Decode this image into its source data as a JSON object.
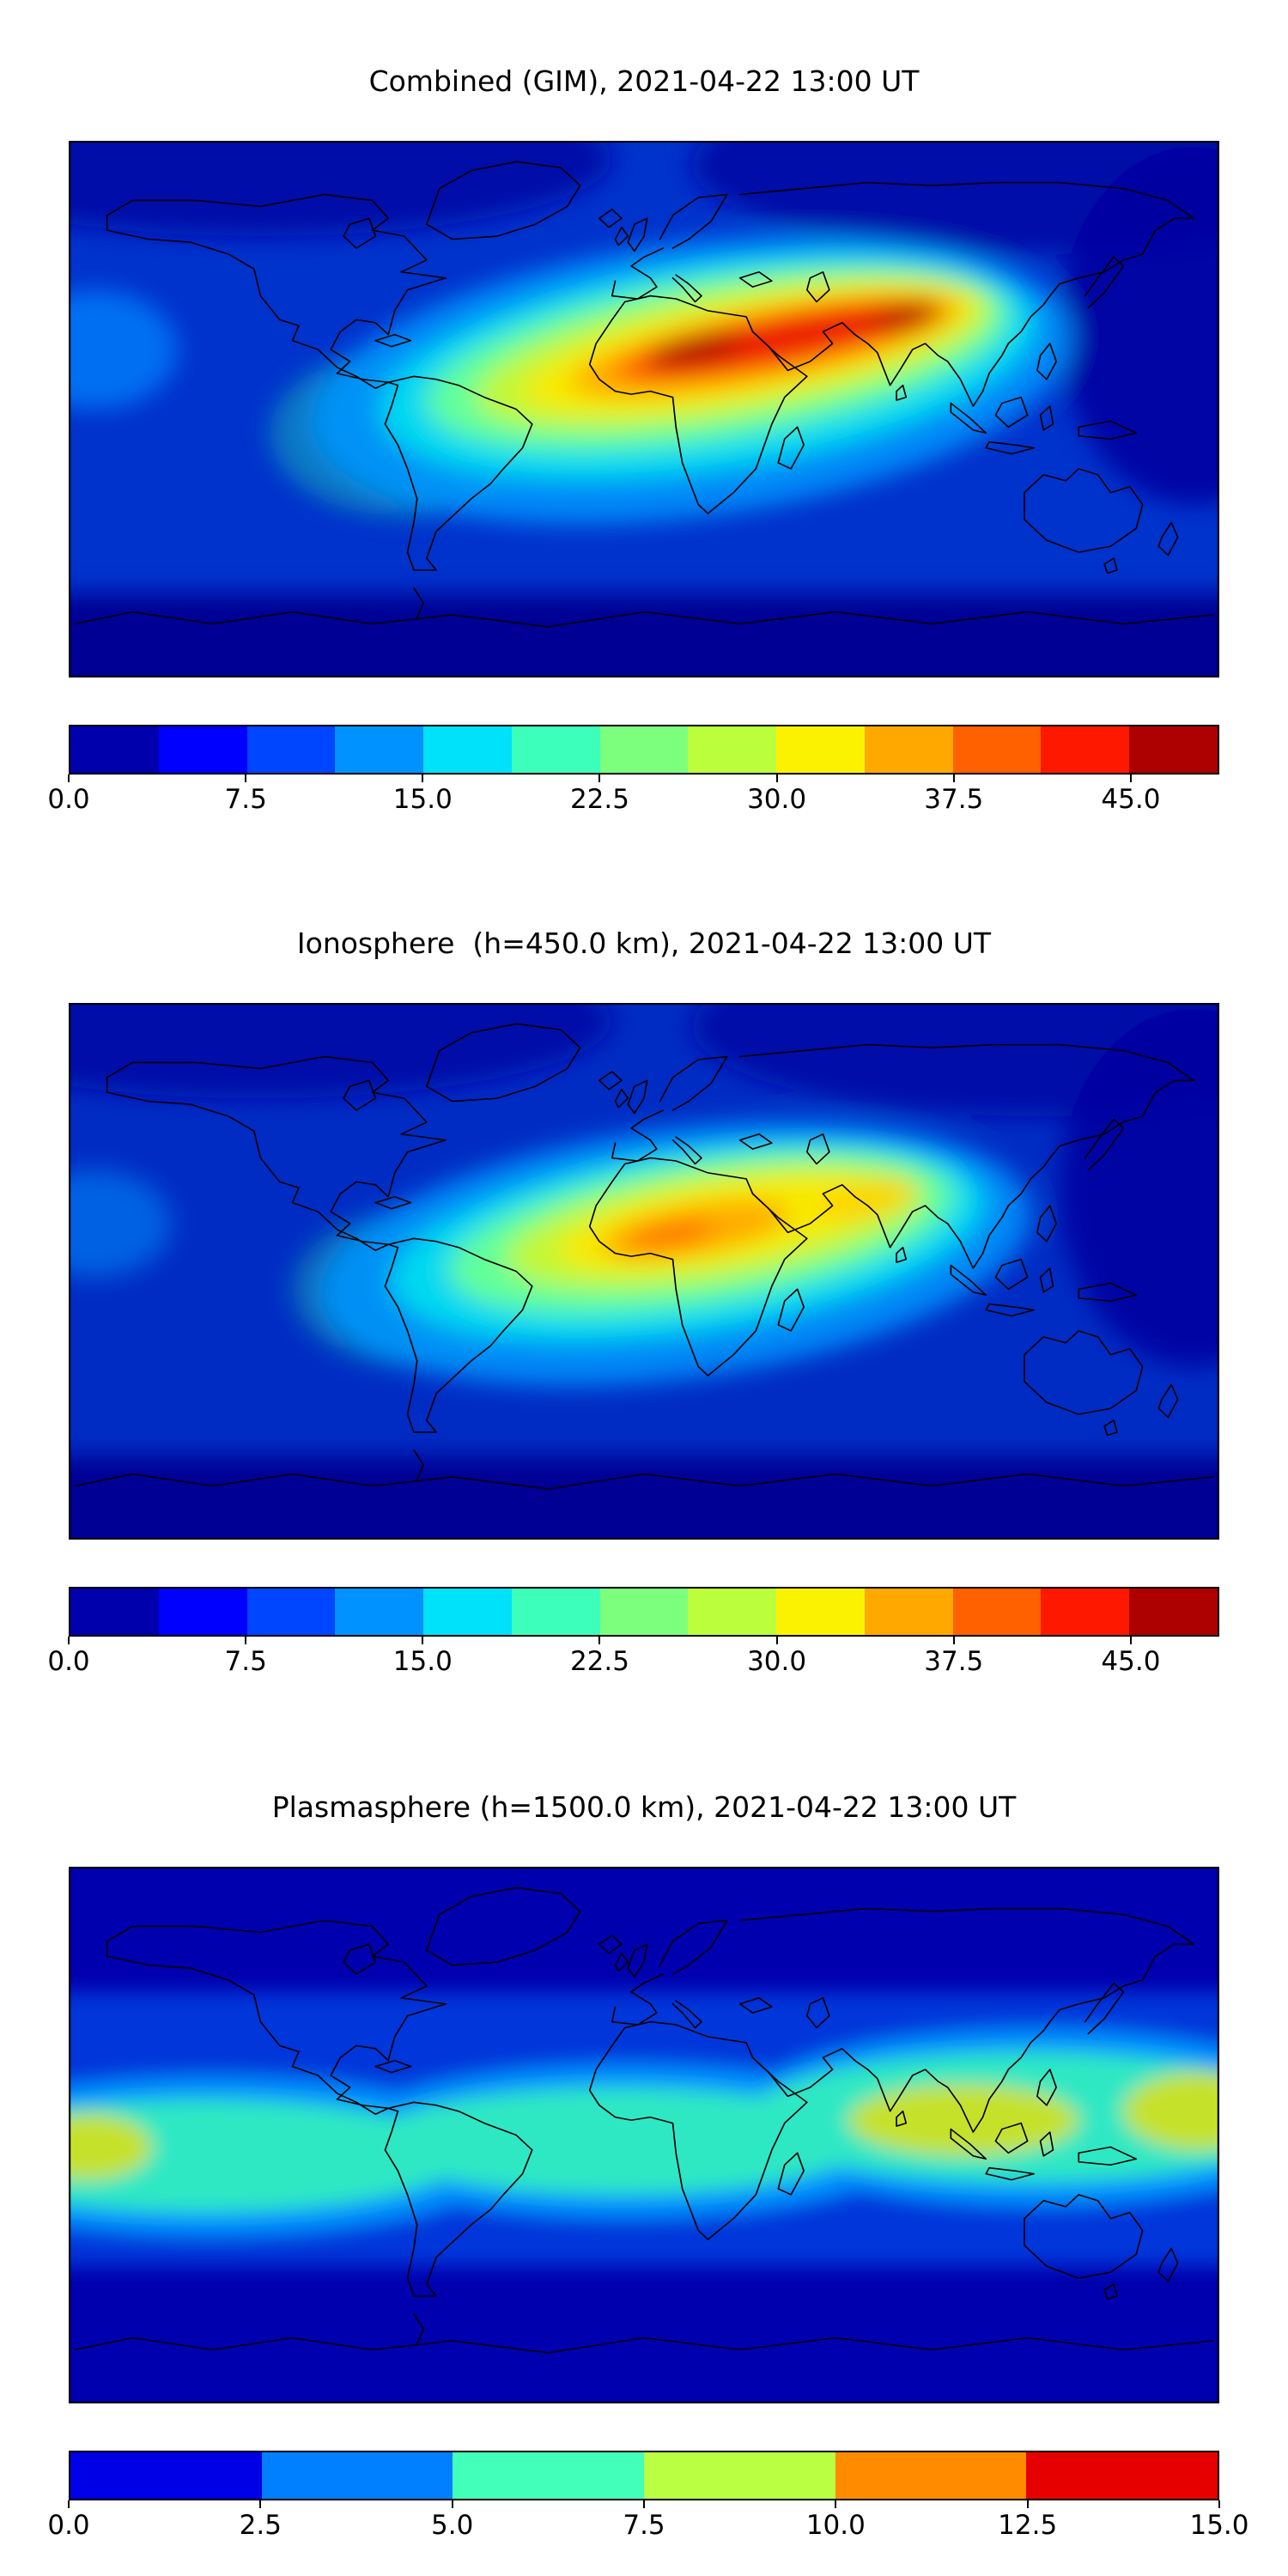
{
  "figure": {
    "background": "#ffffff",
    "text_color": "#000000"
  },
  "panels": [
    {
      "title": "Combined (GIM), 2021-04-22 13:00 UT",
      "colorbar": {
        "vmin": 0.0,
        "vmax": 48.75,
        "outline_color": "#000000",
        "segment_colors": [
          "#0000ad",
          "#0000ff",
          "#0045ff",
          "#0093ff",
          "#00e1fa",
          "#3cffbb",
          "#7cff7c",
          "#bbff3c",
          "#faf200",
          "#ffa900",
          "#ff6000",
          "#ff1800",
          "#ad0000"
        ],
        "ticks": [
          {
            "label": "0.0",
            "pos_pct": 0
          },
          {
            "label": "7.5",
            "pos_pct": 15.385
          },
          {
            "label": "15.0",
            "pos_pct": 30.769
          },
          {
            "label": "22.5",
            "pos_pct": 46.154
          },
          {
            "label": "30.0",
            "pos_pct": 61.538
          },
          {
            "label": "37.5",
            "pos_pct": 76.923
          },
          {
            "label": "45.0",
            "pos_pct": 92.308
          }
        ]
      }
    },
    {
      "title": "Ionosphere  (h=450.0 km), 2021-04-22 13:00 UT",
      "colorbar": {
        "vmin": 0.0,
        "vmax": 48.75,
        "outline_color": "#000000",
        "segment_colors": [
          "#0000ad",
          "#0000ff",
          "#0045ff",
          "#0093ff",
          "#00e1fa",
          "#3cffbb",
          "#7cff7c",
          "#bbff3c",
          "#faf200",
          "#ffa900",
          "#ff6000",
          "#ff1800",
          "#ad0000"
        ],
        "ticks": [
          {
            "label": "0.0",
            "pos_pct": 0
          },
          {
            "label": "7.5",
            "pos_pct": 15.385
          },
          {
            "label": "15.0",
            "pos_pct": 30.769
          },
          {
            "label": "22.5",
            "pos_pct": 46.154
          },
          {
            "label": "30.0",
            "pos_pct": 61.538
          },
          {
            "label": "37.5",
            "pos_pct": 76.923
          },
          {
            "label": "45.0",
            "pos_pct": 92.308
          }
        ]
      }
    },
    {
      "title": "Plasmasphere (h=1500.0 km), 2021-04-22 13:00 UT",
      "colorbar": {
        "vmin": 0.0,
        "vmax": 15.0,
        "outline_color": "#000000",
        "segment_colors": [
          "#0000e6",
          "#0080ff",
          "#42ffba",
          "#baff42",
          "#ff8c00",
          "#e60000"
        ],
        "ticks": [
          {
            "label": "0.0",
            "pos_pct": 0
          },
          {
            "label": "2.5",
            "pos_pct": 16.667
          },
          {
            "label": "5.0",
            "pos_pct": 33.333
          },
          {
            "label": "7.5",
            "pos_pct": 50
          },
          {
            "label": "10.0",
            "pos_pct": 66.667
          },
          {
            "label": "12.5",
            "pos_pct": 83.333
          },
          {
            "label": "15.0",
            "pos_pct": 100
          }
        ]
      }
    }
  ],
  "chart_data": [
    {
      "type": "heatmap",
      "subtype": "filled_contour_world_map",
      "title": "Combined (GIM), 2021-04-22 13:00 UT",
      "datetime_ut": "2021-04-22 13:00",
      "projection": "equirectangular",
      "lon_range": [
        -180,
        180
      ],
      "lat_range": [
        -90,
        90
      ],
      "colormap": "jet",
      "value_range": [
        0,
        48.75
      ],
      "contour_step": 3.75,
      "colorbar_ticks": [
        0.0,
        7.5,
        15.0,
        22.5,
        30.0,
        37.5,
        45.0
      ],
      "grid_lon": [
        -180,
        -135,
        -90,
        -45,
        0,
        45,
        90,
        135,
        180
      ],
      "grid_lat": [
        60,
        30,
        0,
        -30,
        -60
      ],
      "estimated_values": [
        [
          4,
          4,
          5,
          6,
          7,
          8,
          7,
          5,
          4
        ],
        [
          5,
          6,
          9,
          16,
          32,
          40,
          26,
          10,
          5
        ],
        [
          6,
          8,
          14,
          20,
          34,
          30,
          18,
          10,
          7
        ],
        [
          4,
          6,
          10,
          12,
          14,
          12,
          8,
          6,
          4
        ],
        [
          3,
          3,
          4,
          5,
          6,
          6,
          5,
          4,
          3
        ]
      ],
      "maxima": [
        {
          "lon": 15,
          "lat": 14,
          "value": 47
        },
        {
          "lon": 78,
          "lat": 22,
          "value": 45
        }
      ],
      "notes": "Elongated enhancement band from the tropical Atlantic across Africa, Arabia and India (dark red cores over central Africa and India); dark-blue minima over the Pacific, high latitudes and Antarctica."
    },
    {
      "type": "heatmap",
      "subtype": "filled_contour_world_map",
      "title": "Ionosphere  (h=450.0 km), 2021-04-22 13:00 UT",
      "datetime_ut": "2021-04-22 13:00",
      "projection": "equirectangular",
      "lon_range": [
        -180,
        180
      ],
      "lat_range": [
        -90,
        90
      ],
      "colormap": "jet",
      "value_range": [
        0,
        48.75
      ],
      "contour_step": 3.75,
      "colorbar_ticks": [
        0.0,
        7.5,
        15.0,
        22.5,
        30.0,
        37.5,
        45.0
      ],
      "grid_lon": [
        -180,
        -135,
        -90,
        -45,
        0,
        45,
        90,
        135,
        180
      ],
      "grid_lat": [
        60,
        30,
        0,
        -30,
        -60
      ],
      "estimated_values": [
        [
          3,
          3,
          4,
          5,
          6,
          7,
          6,
          4,
          3
        ],
        [
          4,
          5,
          7,
          12,
          25,
          30,
          18,
          8,
          4
        ],
        [
          5,
          7,
          11,
          16,
          26,
          22,
          13,
          8,
          5
        ],
        [
          3,
          5,
          8,
          10,
          11,
          10,
          7,
          5,
          3
        ],
        [
          2,
          2,
          3,
          4,
          5,
          5,
          4,
          3,
          2
        ]
      ],
      "maxima": [
        {
          "lon": 8,
          "lat": 13,
          "value": 33
        },
        {
          "lon": 60,
          "lat": 18,
          "value": 28
        }
      ],
      "notes": "Same pattern as the combined map but weaker; orange maximum over West/Central Africa with a yellow tongue extending toward India."
    },
    {
      "type": "heatmap",
      "subtype": "filled_contour_world_map",
      "title": "Plasmasphere (h=1500.0 km), 2021-04-22 13:00 UT",
      "datetime_ut": "2021-04-22 13:00",
      "projection": "equirectangular",
      "lon_range": [
        -180,
        180
      ],
      "lat_range": [
        -90,
        90
      ],
      "colormap": "jet",
      "value_range": [
        0,
        15
      ],
      "contour_step": 2.5,
      "colorbar_ticks": [
        0.0,
        2.5,
        5.0,
        7.5,
        10.0,
        12.5,
        15.0
      ],
      "grid_lon": [
        -180,
        -135,
        -90,
        -45,
        0,
        45,
        90,
        135,
        180
      ],
      "grid_lat": [
        60,
        30,
        0,
        -30,
        -60
      ],
      "estimated_values": [
        [
          1,
          1,
          1,
          1,
          1,
          1,
          1,
          1,
          1
        ],
        [
          3,
          3,
          3,
          4,
          4,
          6,
          8,
          7,
          4
        ],
        [
          9,
          6,
          6,
          6,
          6,
          7,
          10,
          10,
          9
        ],
        [
          3,
          4,
          4,
          3,
          3,
          3,
          4,
          5,
          4
        ],
        [
          1,
          1,
          1,
          1,
          1,
          1,
          1,
          1,
          1
        ]
      ],
      "maxima": [
        {
          "lon": 100,
          "lat": 12,
          "value": 10.5
        },
        {
          "lon": 178,
          "lat": 2,
          "value": 10
        },
        {
          "lon": -177,
          "lat": -4,
          "value": 9.5
        }
      ],
      "notes": "Broad cyan equatorial belt (about +/-30 degrees) with yellow-green patches over South/Southeast Asia, the west Pacific and the far-west map edge; dark blue (<2.5) poleward of about +/-45 degrees."
    }
  ]
}
